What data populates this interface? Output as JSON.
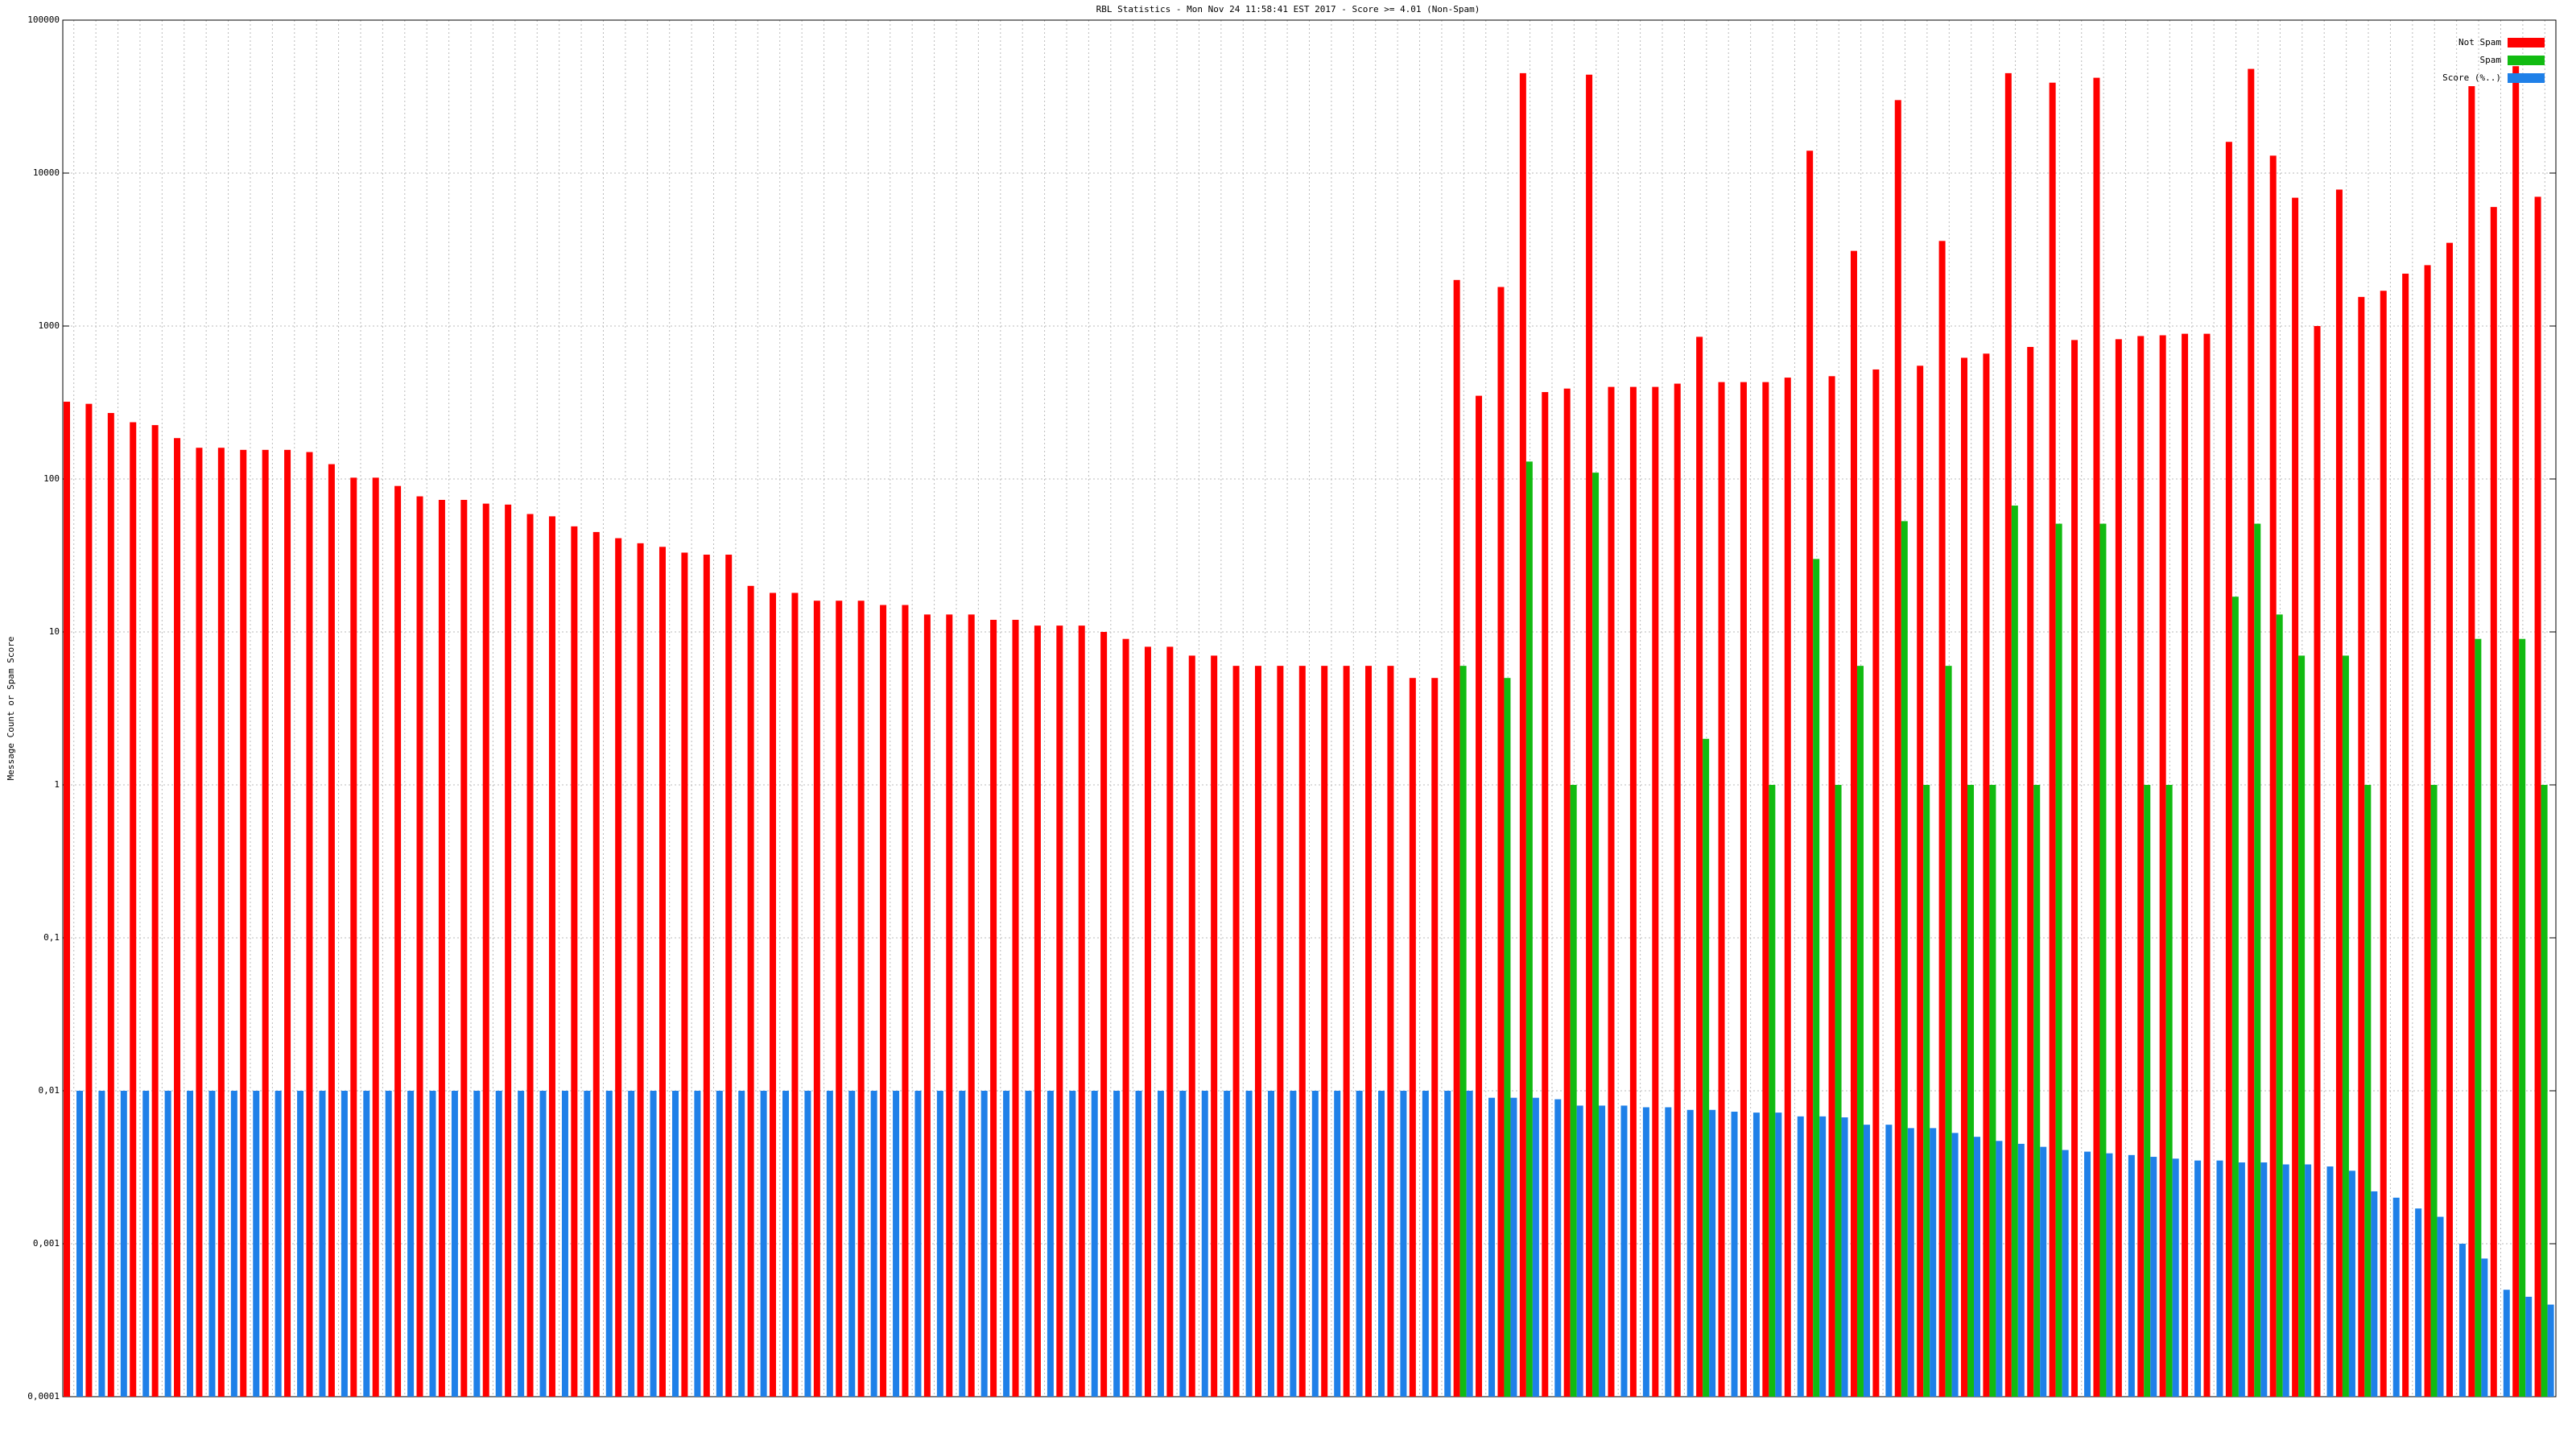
{
  "chart_data": {
    "type": "bar",
    "title": "RBL Statistics - Mon Nov 24 11:58:41 EST 2017 - Score >= 4.01 (Non-Spam)",
    "y_label": "Message Count or Spam Score",
    "log_scale": true,
    "grid": true,
    "legend": "upper right",
    "ylim": [
      0.0001,
      100000
    ],
    "yticks": [
      {
        "value": 0.0001,
        "label": "0,0001"
      },
      {
        "value": 0.001,
        "label": "0,001"
      },
      {
        "value": 0.01,
        "label": "0,01"
      },
      {
        "value": 0.1,
        "label": "0,1"
      },
      1,
      10,
      100,
      1000,
      10000,
      100000
    ],
    "categories": [
      null,
      null,
      null,
      null,
      null,
      null,
      null,
      null,
      null,
      null,
      null,
      null,
      null,
      null,
      null,
      null,
      null,
      null,
      null,
      null,
      null,
      null,
      null,
      null,
      null,
      null,
      null,
      null,
      null,
      null,
      null,
      null,
      null,
      null,
      null,
      null,
      null,
      null,
      null,
      null,
      null,
      null,
      null,
      null,
      null,
      null,
      null,
      null,
      null,
      null,
      null,
      null,
      null,
      null,
      null,
      null,
      null,
      null,
      null,
      null,
      null,
      null,
      null,
      null,
      null,
      null,
      null,
      null,
      null,
      null,
      null,
      null,
      null,
      null,
      null,
      null,
      null,
      null,
      null,
      null,
      null,
      null,
      null,
      null,
      null,
      null,
      null,
      null,
      null,
      null,
      null,
      null,
      null,
      null,
      null,
      null,
      null,
      null,
      null,
      null,
      null,
      null,
      null,
      null,
      null,
      null,
      null,
      null,
      null,
      null,
      null,
      null,
      null
    ],
    "series": [
      {
        "name": "Not Spam",
        "color": "#ff0000",
        "values": [
          320,
          310,
          270,
          235,
          225,
          185,
          160,
          160,
          155,
          155,
          155,
          150,
          125,
          102,
          102,
          90,
          77,
          73,
          73,
          69,
          68,
          59,
          57,
          49,
          45,
          41,
          38,
          36,
          33,
          32,
          32,
          20,
          18,
          18,
          16,
          16,
          16,
          15,
          15,
          13,
          13,
          13,
          12,
          12,
          11,
          11,
          11,
          10,
          9,
          8,
          8,
          7,
          7,
          6,
          6,
          6,
          6,
          6,
          6,
          6,
          6,
          5,
          5,
          2000,
          350,
          1800,
          45000,
          370,
          390,
          44000,
          400,
          400,
          400,
          420,
          850,
          430,
          430,
          430,
          460,
          14000,
          470,
          3100,
          520,
          30000,
          550,
          3600,
          620,
          660,
          45000,
          730,
          39000,
          810,
          42000,
          820,
          860,
          870,
          890,
          890,
          16000,
          48000,
          13000,
          6900,
          1000,
          7800,
          1550,
          1700,
          2200,
          2500,
          3500,
          37000,
          6000,
          50000,
          7000
        ]
      },
      {
        "name": "Spam",
        "color": "#11bb11",
        "values": [
          null,
          null,
          null,
          null,
          null,
          null,
          null,
          null,
          null,
          null,
          null,
          null,
          null,
          null,
          null,
          null,
          null,
          null,
          null,
          null,
          null,
          null,
          null,
          null,
          null,
          null,
          null,
          null,
          null,
          null,
          null,
          null,
          null,
          null,
          null,
          null,
          null,
          null,
          null,
          null,
          null,
          null,
          null,
          null,
          null,
          null,
          null,
          null,
          null,
          null,
          null,
          null,
          null,
          null,
          null,
          null,
          null,
          null,
          null,
          null,
          null,
          null,
          null,
          6,
          null,
          5,
          130,
          null,
          1,
          110,
          null,
          null,
          null,
          null,
          2,
          null,
          null,
          1,
          null,
          30,
          1,
          6,
          null,
          53,
          1,
          6,
          1,
          1,
          67,
          1,
          51,
          null,
          51,
          null,
          1,
          1,
          null,
          null,
          17,
          51,
          13,
          7,
          null,
          7,
          1,
          null,
          null,
          1,
          null,
          9,
          null,
          9,
          1
        ]
      },
      {
        "name": "Score (%..)",
        "color": "#1f80e8",
        "values": [
          0.01,
          0.01,
          0.01,
          0.01,
          0.01,
          0.01,
          0.01,
          0.01,
          0.01,
          0.01,
          0.01,
          0.01,
          0.01,
          0.01,
          0.01,
          0.01,
          0.01,
          0.01,
          0.01,
          0.01,
          0.01,
          0.01,
          0.01,
          0.01,
          0.01,
          0.01,
          0.01,
          0.01,
          0.01,
          0.01,
          0.01,
          0.01,
          0.01,
          0.01,
          0.01,
          0.01,
          0.01,
          0.01,
          0.01,
          0.01,
          0.01,
          0.01,
          0.01,
          0.01,
          0.01,
          0.01,
          0.01,
          0.01,
          0.01,
          0.01,
          0.01,
          0.01,
          0.01,
          0.01,
          0.01,
          0.01,
          0.01,
          0.01,
          0.01,
          0.01,
          0.01,
          0.01,
          0.01,
          0.01,
          0.009,
          0.009,
          0.009,
          0.0088,
          0.008,
          0.008,
          0.008,
          0.0078,
          0.0078,
          0.0075,
          0.0075,
          0.0073,
          0.0072,
          0.0072,
          0.0068,
          0.0068,
          0.0067,
          0.006,
          0.006,
          0.0057,
          0.0057,
          0.0053,
          0.005,
          0.0047,
          0.0045,
          0.0043,
          0.0041,
          0.004,
          0.0039,
          0.0038,
          0.0037,
          0.0036,
          0.0035,
          0.0035,
          0.0034,
          0.0034,
          0.0033,
          0.0033,
          0.0032,
          0.003,
          0.0022,
          0.002,
          0.0017,
          0.0015,
          0.001,
          0.0008,
          0.0005,
          0.00045,
          0.0004
        ]
      }
    ]
  }
}
